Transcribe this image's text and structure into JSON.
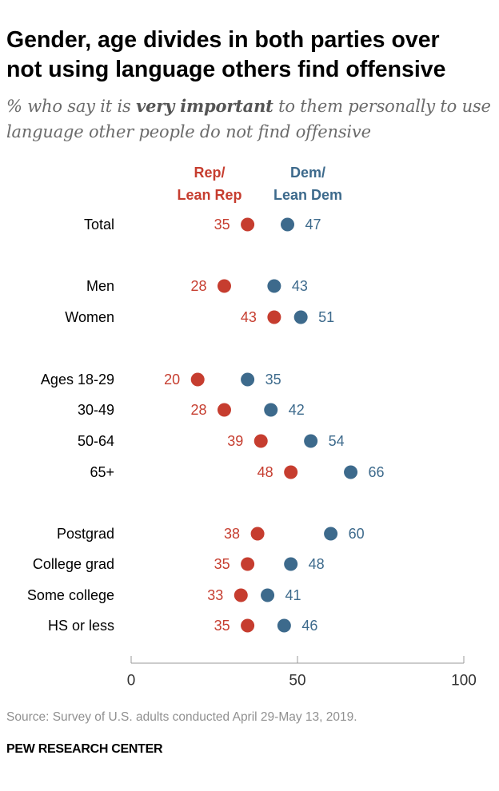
{
  "title_line1": "Gender, age divides in both parties over",
  "title_line2": "not using language others find offensive",
  "subtitle_pre": "% who say it is ",
  "subtitle_emph": "very important",
  "subtitle_post": " to them personally to use language other people do not find offensive",
  "legend": {
    "rep_line1": "Rep/",
    "rep_line2": "Lean Rep",
    "dem_line1": "Dem/",
    "dem_line2": "Lean Dem"
  },
  "colors": {
    "rep": "#c63d2f",
    "dem": "#3d6a8c",
    "axis": "#999999",
    "source": "#909090"
  },
  "chart_data": {
    "type": "scatter",
    "categories": [
      "Total",
      "Men",
      "Women",
      "Ages 18-29",
      "30-49",
      "50-64",
      "65+",
      "Postgrad",
      "College grad",
      "Some college",
      "HS or less"
    ],
    "series": [
      {
        "name": "Rep/Lean Rep",
        "values": [
          35,
          28,
          43,
          20,
          28,
          39,
          48,
          38,
          35,
          33,
          35
        ]
      },
      {
        "name": "Dem/Lean Dem",
        "values": [
          47,
          43,
          51,
          35,
          42,
          54,
          66,
          60,
          48,
          41,
          46
        ]
      }
    ],
    "xlim": [
      0,
      100
    ],
    "xticks": [
      0,
      50,
      100
    ],
    "xtick_labels": [
      "0",
      "50",
      "100"
    ]
  },
  "source": "Source: Survey of U.S. adults conducted April 29-May 13, 2019.",
  "brand": "PEW RESEARCH CENTER"
}
